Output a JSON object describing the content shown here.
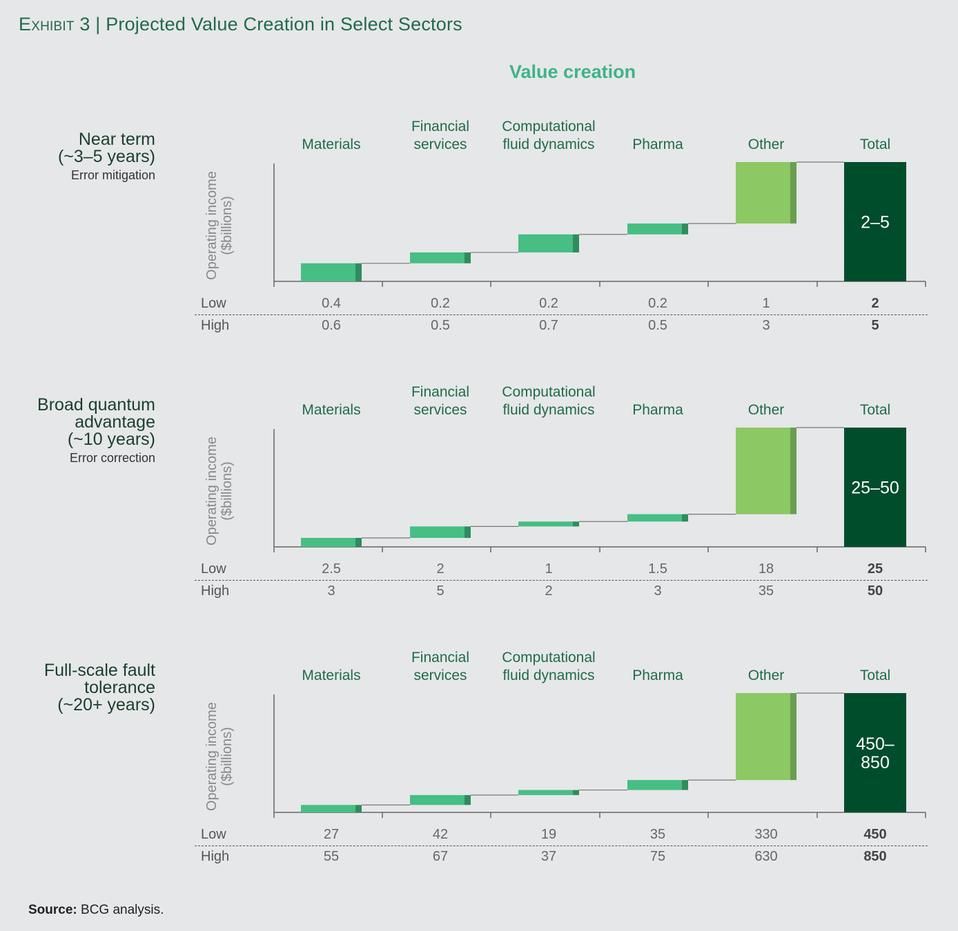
{
  "header": {
    "exhibit_label": "Exhibit 3",
    "separator": "|",
    "title": "Projected Value Creation in Select Sectors",
    "subtitle": "Value creation"
  },
  "source": {
    "label": "Source:",
    "text": "BCG analysis."
  },
  "colors": {
    "background": "#e6e7e8",
    "sector_bar": "#46be84",
    "sector_bar_side": "#2f8c5c",
    "other_bar": "#8cc863",
    "other_bar_side": "#6a9e50",
    "total_bar": "#004d2c",
    "title_green": "#3fb389"
  },
  "chart_data": [
    {
      "type": "waterfall",
      "row_title": "Near term\n(~3–5 years)",
      "row_subtitle": "Error mitigation",
      "ylabel": "Operating income\n($billions)",
      "categories": [
        "Materials",
        "Financial\nservices",
        "Computational\nfluid dynamics",
        "Pharma",
        "Other",
        "Total"
      ],
      "row_labels": [
        "Low",
        "High"
      ],
      "low": [
        "0.4",
        "0.2",
        "0.2",
        "0.2",
        "1",
        "2"
      ],
      "high": [
        "0.6",
        "0.5",
        "0.7",
        "0.5",
        "3",
        "5"
      ],
      "bar_values": [
        0.5,
        0.3,
        0.5,
        0.3,
        1.7
      ],
      "total_label": "2–5"
    },
    {
      "type": "waterfall",
      "row_title": "Broad quantum\nadvantage\n(~10 years)",
      "row_subtitle": "Error correction",
      "ylabel": "Operating income\n($billions)",
      "categories": [
        "Materials",
        "Financial\nservices",
        "Computational\nfluid dynamics",
        "Pharma",
        "Other",
        "Total"
      ],
      "row_labels": [
        "Low",
        "High"
      ],
      "low": [
        "2.5",
        "2",
        "1",
        "1.5",
        "18",
        "25"
      ],
      "high": [
        "3",
        "5",
        "2",
        "3",
        "35",
        "50"
      ],
      "bar_values": [
        2.75,
        3.5,
        1.5,
        2.25,
        26.5
      ],
      "total_label": "25–50"
    },
    {
      "type": "waterfall",
      "row_title": "Full-scale fault\ntolerance\n(~20+ years)",
      "row_subtitle": "",
      "ylabel": "Operating income\n($billions)",
      "categories": [
        "Materials",
        "Financial\nservices",
        "Computational\nfluid dynamics",
        "Pharma",
        "Other",
        "Total"
      ],
      "row_labels": [
        "Low",
        "High"
      ],
      "low": [
        "27",
        "42",
        "19",
        "35",
        "330",
        "450"
      ],
      "high": [
        "55",
        "67",
        "37",
        "75",
        "630",
        "850"
      ],
      "bar_values": [
        41,
        54.5,
        28,
        55,
        480
      ],
      "total_label": "450–\n850"
    }
  ]
}
